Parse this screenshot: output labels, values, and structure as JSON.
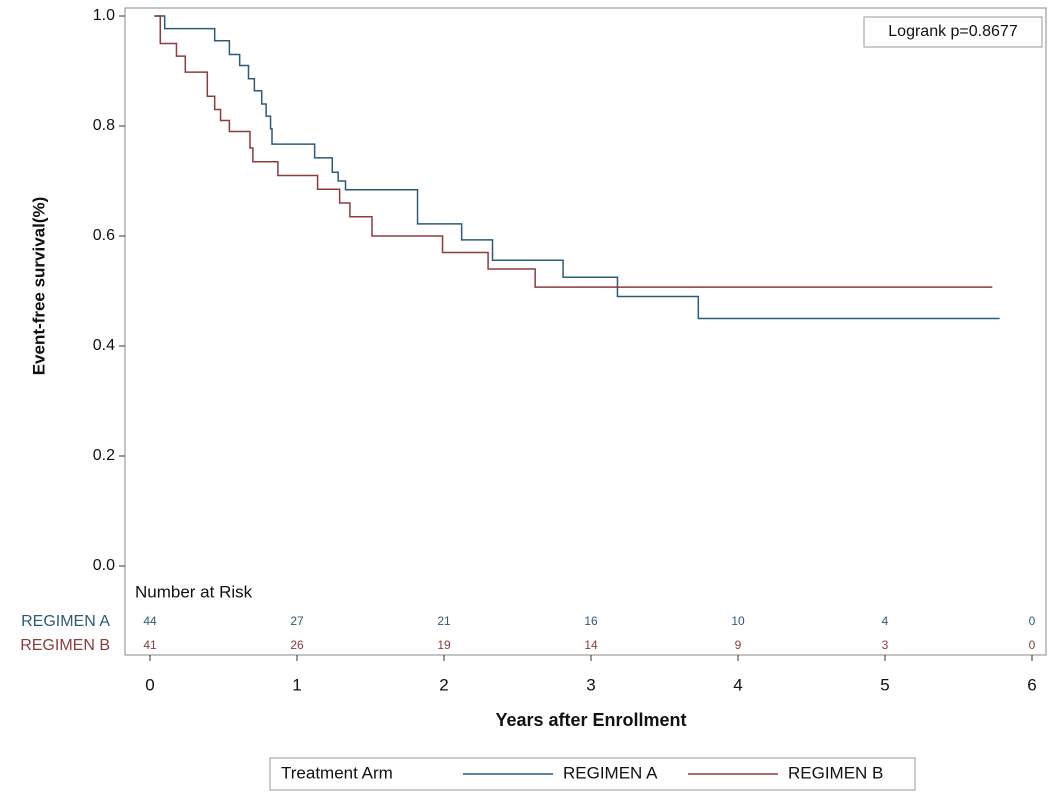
{
  "chart_data": {
    "type": "step",
    "y_label": "Event-free survival(%)",
    "x_label": "Years after Enrollment",
    "annotation": "Logrank p=0.8677",
    "legend_title": "Treatment Arm",
    "xlim": [
      0,
      6
    ],
    "xticks": [
      0,
      1,
      2,
      3,
      4,
      5,
      6
    ],
    "ylim": [
      0,
      1
    ],
    "yticks": [
      {
        "value": 0,
        "label": "0.0"
      },
      0.2,
      0.4,
      0.6,
      0.8,
      {
        "value": 1,
        "label": "1.0"
      }
    ],
    "series": [
      {
        "name": "REGIMEN A",
        "color": "#2e5a78",
        "x": [
          0.03,
          0.1,
          0.44,
          0.54,
          0.61,
          0.67,
          0.71,
          0.76,
          0.79,
          0.82,
          0.83,
          1.12,
          1.24,
          1.28,
          1.33,
          1.82,
          2.12,
          2.33,
          2.81,
          3.18,
          3.73,
          5.78
        ],
        "values": [
          1.0,
          0.977,
          0.955,
          0.93,
          0.91,
          0.886,
          0.864,
          0.84,
          0.818,
          0.795,
          0.767,
          0.742,
          0.716,
          0.7,
          0.684,
          0.622,
          0.593,
          0.556,
          0.525,
          0.49,
          0.45,
          0.45
        ]
      },
      {
        "name": "REGIMEN B",
        "color": "#8e3b3b",
        "x": [
          0.03,
          0.07,
          0.18,
          0.24,
          0.39,
          0.44,
          0.48,
          0.54,
          0.68,
          0.7,
          0.87,
          1.14,
          1.29,
          1.36,
          1.51,
          1.99,
          2.3,
          2.62,
          5.73
        ],
        "values": [
          1.0,
          0.95,
          0.927,
          0.898,
          0.854,
          0.83,
          0.81,
          0.79,
          0.76,
          0.735,
          0.71,
          0.685,
          0.66,
          0.635,
          0.6,
          0.57,
          0.54,
          0.507,
          0.507
        ]
      }
    ],
    "at_risk": {
      "title": "Number at Risk",
      "x": [
        0,
        1,
        2,
        3,
        4,
        5,
        6
      ],
      "counts": [
        [
          44,
          27,
          21,
          16,
          10,
          4,
          0
        ],
        [
          41,
          26,
          19,
          14,
          9,
          3,
          0
        ]
      ]
    }
  }
}
